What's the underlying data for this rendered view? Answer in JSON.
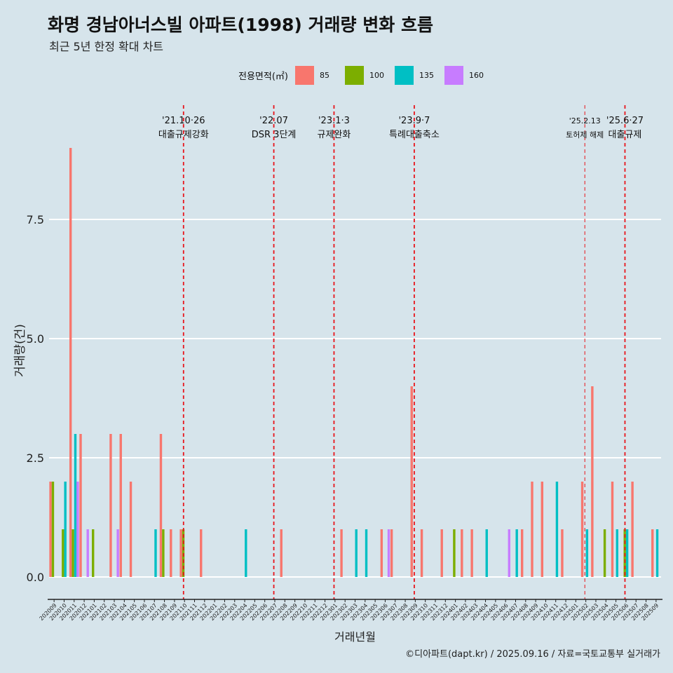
{
  "title": "화명 경남아너스빌 아파트(1998) 거래량 변화 흐름",
  "subtitle": "최근 5년 한정 확대 차트",
  "caption": "©디아파트(dapt.kr) / 2025.09.16 / 자료=국토교통부 실거래가",
  "legend": {
    "title": "전용면적(㎡)",
    "items": [
      {
        "label": "85",
        "color": "#f8766d"
      },
      {
        "label": "100",
        "color": "#7cae00"
      },
      {
        "label": "135",
        "color": "#00bfc4"
      },
      {
        "label": "160",
        "color": "#c77cff"
      }
    ]
  },
  "chart_data": {
    "type": "bar",
    "xlabel": "거래년월",
    "ylabel": "거래량(건)",
    "ylim": [
      0,
      8.6
    ],
    "yticks": [
      0.0,
      2.5,
      5.0,
      7.5
    ],
    "ytick_labels": [
      "0.0",
      "2.5",
      "5.0",
      "7.5"
    ],
    "categories": [
      "202009",
      "202010",
      "202011",
      "202012",
      "202101",
      "202102",
      "202103",
      "202104",
      "202105",
      "202106",
      "202107",
      "202108",
      "202109",
      "202110",
      "202111",
      "202112",
      "202201",
      "202202",
      "202203",
      "202204",
      "202205",
      "202206",
      "202207",
      "202208",
      "202209",
      "202210",
      "202211",
      "202212",
      "202301",
      "202302",
      "202303",
      "202304",
      "202305",
      "202306",
      "202307",
      "202308",
      "202309",
      "202310",
      "202311",
      "202312",
      "202401",
      "202402",
      "202403",
      "202404",
      "202405",
      "202406",
      "202407",
      "202408",
      "202409",
      "202410",
      "202411",
      "202412",
      "202501",
      "202502",
      "202503",
      "202504",
      "202505",
      "202506",
      "202507",
      "202508",
      "202509"
    ],
    "series": [
      {
        "name": "85",
        "values": [
          2,
          0,
          9,
          3,
          0,
          0,
          3,
          3,
          2,
          0,
          0,
          3,
          1,
          1,
          0,
          1,
          0,
          0,
          0,
          0,
          0,
          0,
          0,
          1,
          0,
          0,
          0,
          0,
          0,
          1,
          0,
          0,
          0,
          1,
          1,
          0,
          4,
          1,
          0,
          1,
          0,
          1,
          1,
          0,
          0,
          0,
          0,
          1,
          2,
          2,
          0,
          1,
          0,
          2,
          4,
          0,
          2,
          0,
          2,
          0,
          1
        ]
      },
      {
        "name": "100",
        "values": [
          2,
          1,
          1,
          0,
          1,
          0,
          0,
          0,
          0,
          0,
          0,
          1,
          0,
          1,
          0,
          0,
          0,
          0,
          0,
          0,
          0,
          0,
          0,
          0,
          0,
          0,
          0,
          0,
          0,
          0,
          0,
          0,
          0,
          0,
          0,
          0,
          0,
          0,
          0,
          0,
          1,
          0,
          0,
          0,
          0,
          0,
          0,
          0,
          0,
          0,
          0,
          0,
          0,
          0,
          0,
          1,
          0,
          1,
          0,
          0,
          0
        ]
      },
      {
        "name": "135",
        "values": [
          0,
          2,
          3,
          0,
          0,
          0,
          0,
          0,
          0,
          0,
          1,
          0,
          0,
          0,
          0,
          0,
          0,
          0,
          0,
          1,
          0,
          0,
          0,
          0,
          0,
          0,
          0,
          0,
          0,
          0,
          1,
          1,
          0,
          0,
          0,
          0,
          0,
          0,
          0,
          0,
          0,
          0,
          0,
          1,
          0,
          0,
          1,
          0,
          0,
          0,
          2,
          0,
          0,
          1,
          0,
          0,
          1,
          1,
          0,
          0,
          1
        ]
      },
      {
        "name": "160",
        "values": [
          0,
          0,
          2,
          1,
          0,
          0,
          1,
          0,
          0,
          0,
          0,
          0,
          0,
          0,
          0,
          0,
          0,
          0,
          0,
          0,
          0,
          0,
          0,
          0,
          0,
          0,
          0,
          0,
          0,
          0,
          0,
          0,
          0,
          1,
          0,
          0,
          0,
          0,
          0,
          0,
          0,
          0,
          0,
          0,
          0,
          1,
          0,
          0,
          0,
          0,
          0,
          0,
          0,
          0,
          0,
          0,
          0,
          0,
          0,
          0,
          0
        ]
      }
    ],
    "annotations": [
      {
        "date": "'21.10·26",
        "label": "대출규제강화",
        "category": "202110"
      },
      {
        "date": "'22.07",
        "label": "DSR 3단계",
        "category": "202207"
      },
      {
        "date": "'23.1·3",
        "label": "규제완화",
        "category": "202301"
      },
      {
        "date": "'23.9·7",
        "label": "특례대출축소",
        "category": "202309"
      },
      {
        "date": "'25.2.13",
        "label": "토허제 해제",
        "category": "202502"
      },
      {
        "date": "'25.6·27",
        "label": "대출규제",
        "category": "202506"
      }
    ],
    "grid": true,
    "legend_position": "top"
  }
}
